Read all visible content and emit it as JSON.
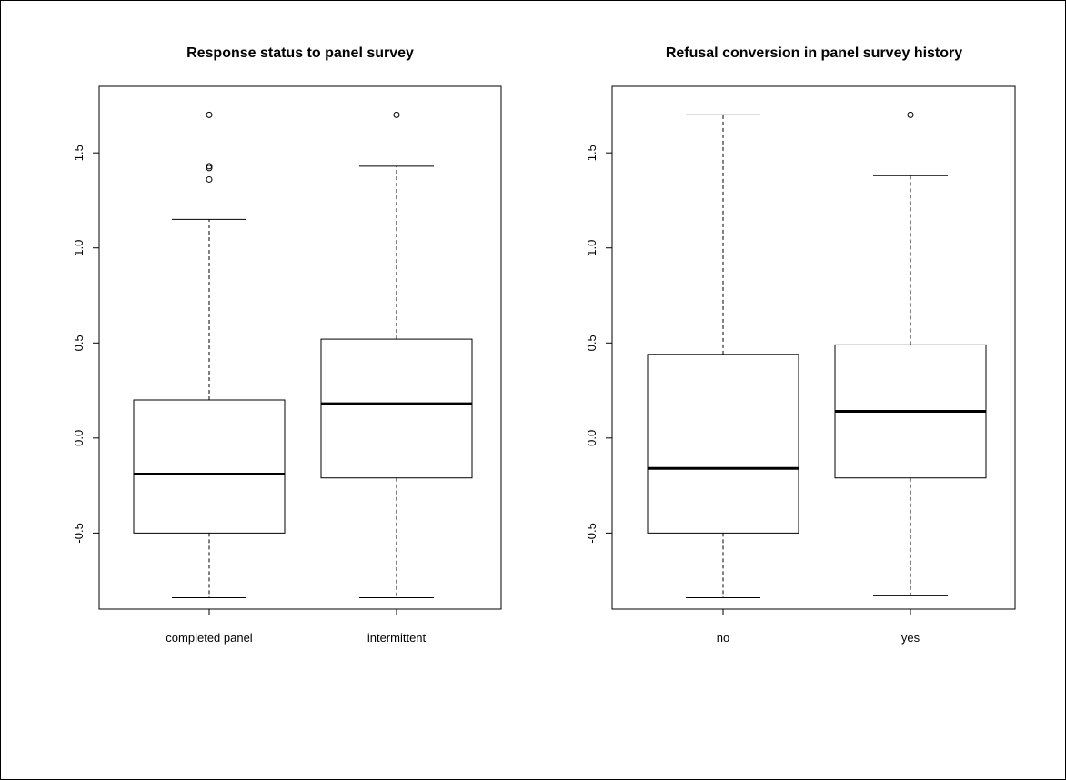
{
  "chart_data": [
    {
      "type": "box",
      "title": "Response status to panel survey",
      "categories": [
        "completed panel",
        "intermittent"
      ],
      "ylim": [
        -0.9,
        1.85
      ],
      "yticks": [
        -0.5,
        0.0,
        0.5,
        1.0,
        1.5
      ],
      "ytick_labels": [
        "-0.5",
        "0.0",
        "0.5",
        "1.0",
        "1.5"
      ],
      "boxes": [
        {
          "whisker_low": -0.84,
          "q1": -0.5,
          "median": -0.19,
          "q3": 0.2,
          "whisker_high": 1.15,
          "outliers": [
            1.36,
            1.42,
            1.43,
            1.7
          ]
        },
        {
          "whisker_low": -0.84,
          "q1": -0.21,
          "median": 0.18,
          "q3": 0.52,
          "whisker_high": 1.43,
          "outliers": [
            1.7
          ]
        }
      ]
    },
    {
      "type": "box",
      "title": "Refusal conversion in panel survey history",
      "categories": [
        "no",
        "yes"
      ],
      "ylim": [
        -0.9,
        1.85
      ],
      "yticks": [
        -0.5,
        0.0,
        0.5,
        1.0,
        1.5
      ],
      "ytick_labels": [
        "-0.5",
        "0.0",
        "0.5",
        "1.0",
        "1.5"
      ],
      "boxes": [
        {
          "whisker_low": -0.84,
          "q1": -0.5,
          "median": -0.16,
          "q3": 0.44,
          "whisker_high": 1.7,
          "outliers": []
        },
        {
          "whisker_low": -0.83,
          "q1": -0.21,
          "median": 0.14,
          "q3": 0.49,
          "whisker_high": 1.38,
          "outliers": [
            1.7
          ]
        }
      ]
    }
  ]
}
